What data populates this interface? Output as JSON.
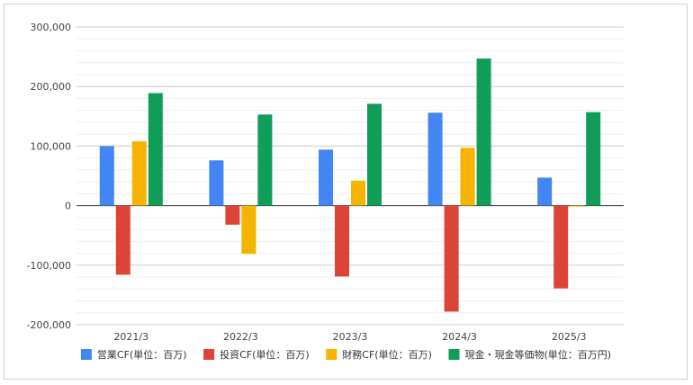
{
  "chart_data": {
    "type": "bar",
    "categories": [
      "2021/3",
      "2022/3",
      "2023/3",
      "2024/3",
      "2025/3"
    ],
    "series": [
      {
        "name": "営業CF(単位：百万)",
        "color": "#4285f4",
        "values": [
          100000,
          76000,
          94000,
          156000,
          47000
        ]
      },
      {
        "name": "投資CF(単位：百万)",
        "color": "#db4437",
        "values": [
          -116000,
          -32000,
          -119000,
          -178000,
          -139000
        ]
      },
      {
        "name": "財務CF(単位：百万)",
        "color": "#f4b400",
        "values": [
          108000,
          -81000,
          42000,
          97000,
          -1500
        ]
      },
      {
        "name": "現金・現金等価物(単位：百万円)",
        "color": "#0f9d58",
        "values": [
          189000,
          153000,
          171000,
          247000,
          157000
        ]
      }
    ],
    "ylim": [
      -200000,
      300000
    ],
    "yticks": [
      -200000,
      -100000,
      0,
      100000,
      200000,
      300000
    ],
    "ytick_labels": [
      "-200,000",
      "-100,000",
      "0",
      "100,000",
      "200,000",
      "300,000"
    ],
    "minor_gridlines": true,
    "grid": true,
    "legend_position": "bottom"
  }
}
